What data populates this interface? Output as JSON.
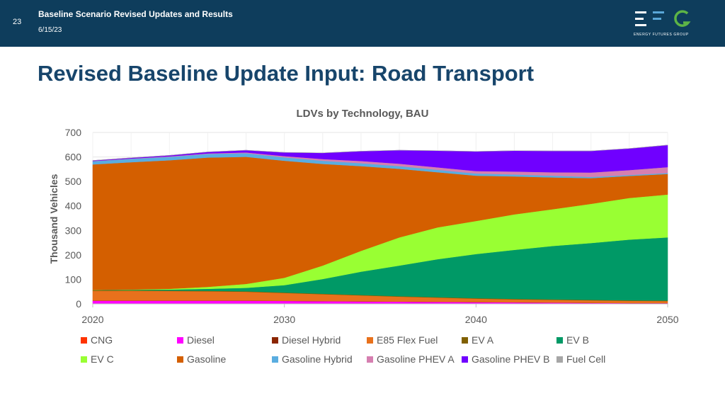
{
  "slide": {
    "number": "23",
    "header_title": "Baseline Scenario Revised Updates and Results",
    "date": "6/15/23",
    "logo_text": "ENERGY FUTURES GROUP",
    "page_title": "Revised Baseline Update Input: Road Transport"
  },
  "colors": {
    "header_bg": "#0e3d5c",
    "title": "#17456b",
    "logo_green": "#5db446",
    "logo_blue": "#5aa7d8"
  },
  "chart_data": {
    "type": "area",
    "stacked": true,
    "title": "LDVs by Technology, BAU",
    "xlabel": "",
    "ylabel": "Thousand Vehicles",
    "xlim": [
      2020,
      2050
    ],
    "ylim": [
      0,
      700
    ],
    "yticks": [
      "0",
      "100",
      "200",
      "300",
      "400",
      "500",
      "600",
      "700"
    ],
    "xticks": [
      "2020",
      "2030",
      "2040",
      "2050"
    ],
    "grid": true,
    "legend_position": "bottom",
    "x": [
      2020,
      2022,
      2024,
      2026,
      2028,
      2030,
      2032,
      2034,
      2036,
      2038,
      2040,
      2042,
      2044,
      2046,
      2048,
      2050
    ],
    "series": [
      {
        "name": "CNG",
        "color": "#ff3300",
        "values": [
          1,
          1,
          1,
          1,
          1,
          1,
          1,
          1,
          1,
          1,
          1,
          1,
          1,
          1,
          1,
          1
        ]
      },
      {
        "name": "Diesel",
        "color": "#ff00ff",
        "values": [
          12,
          12,
          12,
          12,
          12,
          11,
          10,
          9,
          8,
          7,
          6,
          5,
          4,
          3,
          2,
          2
        ]
      },
      {
        "name": "Diesel Hybrid",
        "color": "#8b2500",
        "values": [
          0.5,
          0.5,
          0.5,
          0.5,
          0.5,
          0.5,
          0.5,
          0.5,
          0.5,
          0.5,
          0.5,
          0.5,
          0.5,
          0.5,
          0.5,
          0.5
        ]
      },
      {
        "name": "E85 Flex Fuel",
        "color": "#e8711c",
        "values": [
          40,
          40,
          39,
          38,
          36,
          32,
          28,
          24,
          20,
          17,
          14,
          12,
          11,
          10,
          9,
          8
        ]
      },
      {
        "name": "EV A",
        "color": "#806000",
        "values": [
          2,
          2,
          2,
          2,
          2,
          2,
          2,
          2,
          2,
          2,
          2,
          2,
          2,
          2,
          2,
          2
        ]
      },
      {
        "name": "EV B",
        "color": "#009966",
        "values": [
          1,
          2,
          4,
          8,
          14,
          30,
          60,
          95,
          125,
          155,
          180,
          200,
          218,
          232,
          248,
          258
        ]
      },
      {
        "name": "EV C",
        "color": "#99ff33",
        "values": [
          0,
          1,
          3,
          8,
          16,
          30,
          55,
          85,
          115,
          130,
          135,
          145,
          150,
          160,
          170,
          175
        ]
      },
      {
        "name": "Gasoline",
        "color": "#d45f00",
        "values": [
          513,
          520,
          525,
          528,
          519,
          478,
          415,
          346,
          280,
          225,
          185,
          155,
          130,
          105,
          90,
          84
        ]
      },
      {
        "name": "Gasoline Hybrid",
        "color": "#5aade0",
        "values": [
          13,
          14,
          14,
          15,
          15,
          14,
          13,
          12,
          11,
          10,
          9,
          8,
          7,
          5,
          4,
          4
        ]
      },
      {
        "name": "Gasoline PHEV A",
        "color": "#d67fb0",
        "values": [
          1,
          1,
          2,
          2,
          3,
          5,
          7,
          9,
          10,
          10,
          10,
          12,
          14,
          18,
          20,
          24
        ]
      },
      {
        "name": "Gasoline PHEV B",
        "color": "#7000ff",
        "values": [
          2,
          3,
          4,
          6,
          9,
          15,
          25,
          40,
          55,
          68,
          80,
          85,
          87,
          88,
          88,
          90
        ]
      },
      {
        "name": "Fuel Cell",
        "color": "#a6a6a6",
        "values": [
          0,
          0,
          0,
          0,
          0,
          0,
          0,
          0,
          0,
          0,
          0,
          0,
          0,
          0,
          0,
          0
        ]
      }
    ]
  }
}
